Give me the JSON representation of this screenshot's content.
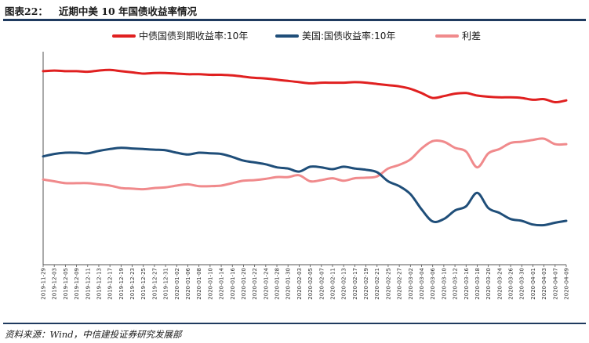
{
  "figure": {
    "number": "图表22：",
    "title": "近期中美 10 年国债收益率情况",
    "source": "资料来源：Wind，中信建投证券研究发展部"
  },
  "chart_data": {
    "type": "line",
    "title": "近期中美 10 年国债收益率情况",
    "xlabel": "",
    "ylabel": "",
    "y_axis_labels_shown": false,
    "ylim": [
      0,
      3.5
    ],
    "grid": false,
    "legend_position": "top",
    "categories": [
      "2019-11-29",
      "2019-12-03",
      "2019-12-05",
      "2019-12-09",
      "2019-12-11",
      "2019-12-13",
      "2019-12-17",
      "2019-12-19",
      "2019-12-23",
      "2019-12-25",
      "2019-12-27",
      "2019-12-31",
      "2020-01-02",
      "2020-01-06",
      "2020-01-08",
      "2020-01-10",
      "2020-01-14",
      "2020-01-16",
      "2020-01-20",
      "2020-01-22",
      "2020-01-24",
      "2020-01-28",
      "2020-01-30",
      "2020-02-03",
      "2020-02-05",
      "2020-02-07",
      "2020-02-11",
      "2020-02-13",
      "2020-02-17",
      "2020-02-19",
      "2020-02-21",
      "2020-02-25",
      "2020-02-27",
      "2020-03-02",
      "2020-03-04",
      "2020-03-06",
      "2020-03-10",
      "2020-03-12",
      "2020-03-16",
      "2020-03-18",
      "2020-03-20",
      "2020-03-24",
      "2020-03-26",
      "2020-03-30",
      "2020-04-01",
      "2020-04-03",
      "2020-04-07",
      "2020-04-09"
    ],
    "series": [
      {
        "name": "中债国债到期收益率:10年",
        "color": "#e02020",
        "values": [
          3.18,
          3.19,
          3.18,
          3.18,
          3.17,
          3.19,
          3.2,
          3.18,
          3.16,
          3.14,
          3.15,
          3.15,
          3.14,
          3.13,
          3.13,
          3.12,
          3.12,
          3.11,
          3.09,
          3.07,
          3.06,
          3.04,
          3.02,
          3.0,
          2.98,
          2.99,
          2.99,
          2.99,
          3.0,
          2.99,
          2.97,
          2.95,
          2.93,
          2.89,
          2.82,
          2.74,
          2.77,
          2.81,
          2.82,
          2.78,
          2.76,
          2.75,
          2.75,
          2.74,
          2.71,
          2.72,
          2.67,
          2.7
        ]
      },
      {
        "name": "美国:国债收益率:10年",
        "color": "#1f4e79",
        "values": [
          1.78,
          1.82,
          1.84,
          1.84,
          1.83,
          1.87,
          1.9,
          1.92,
          1.91,
          1.9,
          1.89,
          1.88,
          1.84,
          1.81,
          1.84,
          1.83,
          1.82,
          1.77,
          1.71,
          1.68,
          1.65,
          1.6,
          1.58,
          1.53,
          1.61,
          1.6,
          1.57,
          1.61,
          1.58,
          1.56,
          1.52,
          1.37,
          1.29,
          1.16,
          0.91,
          0.71,
          0.75,
          0.89,
          0.96,
          1.18,
          0.93,
          0.85,
          0.75,
          0.72,
          0.66,
          0.65,
          0.69,
          0.72
        ]
      },
      {
        "name": "利差",
        "color": "#f08a8c",
        "values": [
          1.4,
          1.37,
          1.34,
          1.34,
          1.34,
          1.32,
          1.3,
          1.26,
          1.25,
          1.24,
          1.26,
          1.27,
          1.3,
          1.32,
          1.29,
          1.29,
          1.3,
          1.34,
          1.38,
          1.39,
          1.41,
          1.44,
          1.44,
          1.47,
          1.37,
          1.39,
          1.42,
          1.38,
          1.42,
          1.43,
          1.45,
          1.58,
          1.64,
          1.73,
          1.91,
          2.03,
          2.02,
          1.92,
          1.86,
          1.6,
          1.83,
          1.9,
          2.0,
          2.02,
          2.05,
          2.07,
          1.98,
          1.98
        ]
      }
    ]
  }
}
